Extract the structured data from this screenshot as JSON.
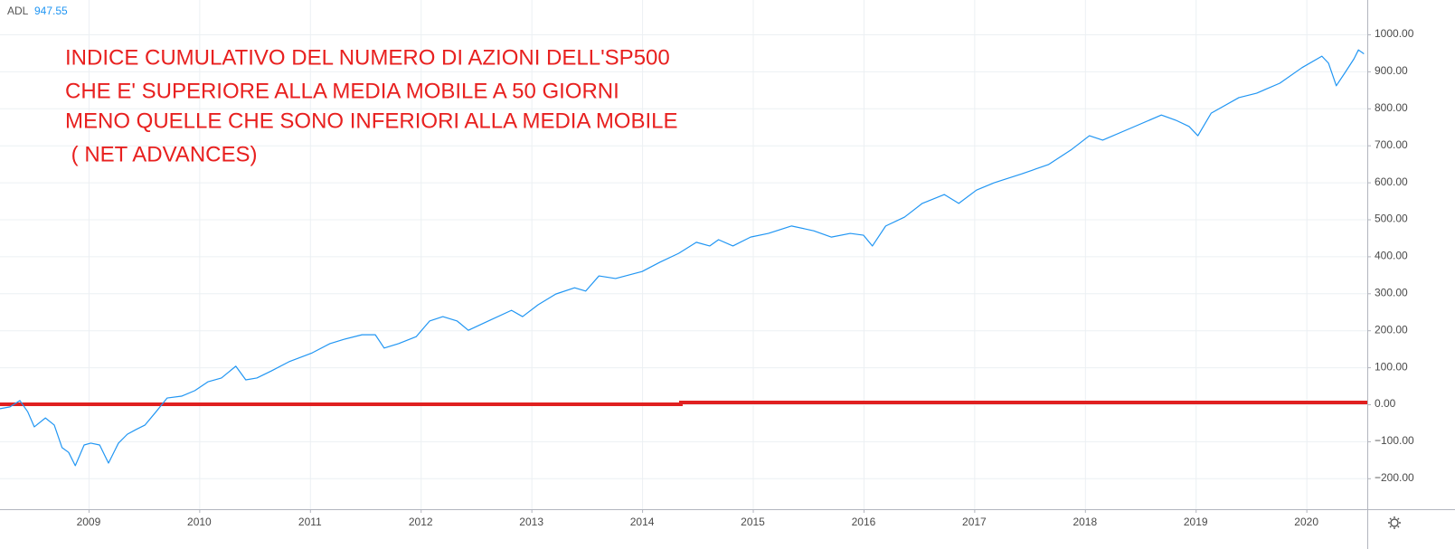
{
  "chart_data": {
    "type": "line",
    "title_lines": [
      "INDICE CUMULATIVO DEL NUMERO DI AZIONI DELL'SP500",
      "CHE E' SUPERIORE ALLA MEDIA MOBILE A 50 GIORNI",
      "MENO QUELLE CHE SONO INFERIORI ALLA MEDIA MOBILE",
      " ( NET ADVANCES)"
    ],
    "legend_value": "947.55",
    "x": [
      2008.2,
      2008.29,
      2008.38,
      2008.45,
      2008.51,
      2008.61,
      2008.69,
      2008.76,
      2008.82,
      2008.88,
      2008.96,
      2009.02,
      2009.1,
      2009.18,
      2009.27,
      2009.35,
      2009.43,
      2009.51,
      2009.61,
      2009.71,
      2009.84,
      2009.96,
      2010.08,
      2010.2,
      2010.33,
      2010.42,
      2010.52,
      2010.65,
      2010.81,
      2011.02,
      2011.18,
      2011.31,
      2011.47,
      2011.59,
      2011.67,
      2011.8,
      2011.96,
      2012.08,
      2012.2,
      2012.33,
      2012.43,
      2012.61,
      2012.82,
      2012.92,
      2013.06,
      2013.22,
      2013.39,
      2013.49,
      2013.61,
      2013.76,
      2014.0,
      2014.16,
      2014.33,
      2014.49,
      2014.61,
      2014.69,
      2014.82,
      2014.98,
      2015.14,
      2015.35,
      2015.55,
      2015.71,
      2015.88,
      2016.0,
      2016.08,
      2016.2,
      2016.37,
      2016.53,
      2016.73,
      2016.86,
      2017.02,
      2017.18,
      2017.43,
      2017.67,
      2017.88,
      2018.04,
      2018.16,
      2018.41,
      2018.69,
      2018.82,
      2018.94,
      2019.02,
      2019.14,
      2019.39,
      2019.55,
      2019.76,
      2019.96,
      2020.14,
      2020.2,
      2020.27,
      2020.35,
      2020.43,
      2020.47,
      2020.52
    ],
    "series": [
      {
        "name": "ADL",
        "color": "#2196f3",
        "values": [
          -12,
          -7,
          10,
          -20,
          -61,
          -37,
          -56,
          -117,
          -130,
          -166,
          -110,
          -105,
          -110,
          -159,
          -105,
          -81,
          -68,
          -56,
          -20,
          17,
          22,
          37,
          61,
          71,
          103,
          66,
          71,
          90,
          115,
          139,
          164,
          176,
          188,
          188,
          152,
          164,
          183,
          225,
          237,
          225,
          200,
          225,
          254,
          237,
          269,
          298,
          315,
          306,
          347,
          340,
          359,
          384,
          408,
          438,
          428,
          445,
          428,
          452,
          462,
          482,
          469,
          452,
          462,
          457,
          428,
          482,
          506,
          543,
          567,
          543,
          579,
          599,
          623,
          648,
          689,
          726,
          714,
          746,
          782,
          768,
          751,
          726,
          787,
          829,
          841,
          868,
          910,
          941,
          922,
          861,
          897,
          934,
          958,
          947.55
        ]
      }
    ],
    "hline": {
      "color": "#e02020",
      "x": [
        2008.2,
        2014.35,
        2014.35,
        2020.55
      ],
      "values": [
        0,
        0,
        5,
        5
      ]
    },
    "xlim": [
      2008.2,
      2020.55
    ],
    "ylim": [
      -283.6,
      1092.9
    ],
    "xticks": [
      2009,
      2010,
      2011,
      2012,
      2013,
      2014,
      2015,
      2016,
      2017,
      2018,
      2019,
      2020
    ],
    "yticks": [
      {
        "value": -200,
        "label": "−200.00"
      },
      {
        "value": -100,
        "label": "−100.00"
      },
      {
        "value": 0,
        "label": "0.00"
      },
      {
        "value": 100,
        "label": "100.00"
      },
      {
        "value": 200,
        "label": "200.00"
      },
      {
        "value": 300,
        "label": "300.00"
      },
      {
        "value": 400,
        "label": "400.00"
      },
      {
        "value": 500,
        "label": "500.00"
      },
      {
        "value": 600,
        "label": "600.00"
      },
      {
        "value": 700,
        "label": "700.00"
      },
      {
        "value": 800,
        "label": "800.00"
      },
      {
        "value": 900,
        "label": "900.00"
      },
      {
        "value": 1000,
        "label": "1000.00"
      }
    ],
    "grid": true
  }
}
